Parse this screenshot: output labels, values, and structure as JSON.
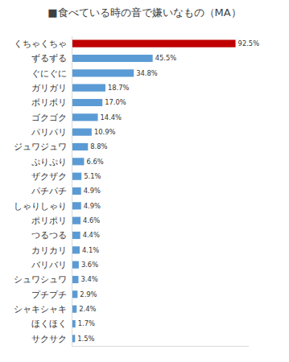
{
  "chart_data": {
    "type": "bar",
    "title": "■食べている時の音で嫌いなもの（MA）",
    "orientation": "horizontal",
    "categories": [
      "くちゃくちゃ",
      "ずるずる",
      "ぐにぐに",
      "ガリガリ",
      "ボリボリ",
      "ゴクゴク",
      "パリパリ",
      "ジュワジュワ",
      "ぷりぷり",
      "ザクザク",
      "パチパチ",
      "しゃりしゃり",
      "ポリポリ",
      "つるつる",
      "カリカリ",
      "バリバリ",
      "シュワシュワ",
      "プチプチ",
      "シャキシャキ",
      "ほくほく",
      "サクサク"
    ],
    "values": [
      92.5,
      45.5,
      34.8,
      18.7,
      17.0,
      14.4,
      10.9,
      8.8,
      6.6,
      5.1,
      4.9,
      4.9,
      4.6,
      4.4,
      4.1,
      3.6,
      3.4,
      2.9,
      2.4,
      1.7,
      1.5
    ],
    "value_labels": [
      "92.5%",
      "45.5%",
      "34.8%",
      "18.7%",
      "17.0%",
      "14.4%",
      "10.9%",
      "8.8%",
      "6.6%",
      "5.1%",
      "4.9%",
      "4.9%",
      "4.6%",
      "4.4%",
      "4.1%",
      "3.6%",
      "3.4%",
      "2.9%",
      "2.4%",
      "1.7%",
      "1.5%"
    ],
    "colors": [
      "#c00000",
      "#5b9bd5",
      "#5b9bd5",
      "#5b9bd5",
      "#5b9bd5",
      "#5b9bd5",
      "#5b9bd5",
      "#5b9bd5",
      "#5b9bd5",
      "#5b9bd5",
      "#5b9bd5",
      "#5b9bd5",
      "#5b9bd5",
      "#5b9bd5",
      "#5b9bd5",
      "#5b9bd5",
      "#5b9bd5",
      "#5b9bd5",
      "#5b9bd5",
      "#5b9bd5",
      "#5b9bd5"
    ],
    "xlim": [
      0,
      100
    ],
    "xticks": [],
    "grid": false,
    "data_labels": true,
    "tick_labels": "y"
  }
}
